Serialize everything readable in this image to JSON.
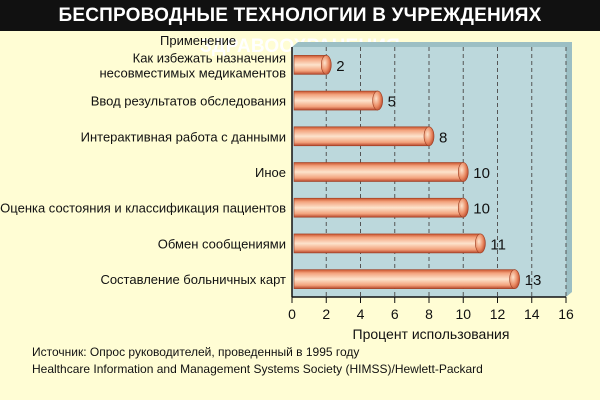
{
  "header": {
    "title": "БЕСПРОВОДНЫЕ ТЕХНОЛОГИИ В УЧРЕЖДЕНИЯХ ЗДРАВООХРАНЕНИЯ"
  },
  "chart_data": {
    "type": "bar",
    "orientation": "horizontal",
    "title": "БЕСПРОВОДНЫЕ ТЕХНОЛОГИИ В УЧРЕЖДЕНИЯХ ЗДРАВООХРАНЕНИЯ",
    "category_axis_title": "Применение",
    "xlabel": "Процент использования",
    "categories": [
      [
        "Как избежать назначения",
        "несовместимых медикаментов"
      ],
      [
        "Ввод результатов обследования"
      ],
      [
        "Интерактивная работа с данными"
      ],
      [
        "Иное"
      ],
      [
        "Оценка состояния и классификация пациентов"
      ],
      [
        "Обмен сообщениями"
      ],
      [
        "Составление больничных карт"
      ]
    ],
    "values": [
      2,
      5,
      8,
      10,
      10,
      11,
      13
    ],
    "xlim": [
      0,
      16
    ],
    "xticks": [
      0,
      2,
      4,
      6,
      8,
      10,
      12,
      14,
      16
    ],
    "grid": "vertical dashed",
    "colors": {
      "bar_light": "#fde3cc",
      "bar_mid": "#f3a27c",
      "bar_dark": "#c8522c",
      "plot_bg": "#bcd8dc",
      "grid": "#555555"
    }
  },
  "source": {
    "line1": "Источник: Опрос руководителей, проведенный в 1995 году",
    "line2": "Healthcare Information and Management Systems Society (HIMSS)/Hewlett-Packard"
  }
}
